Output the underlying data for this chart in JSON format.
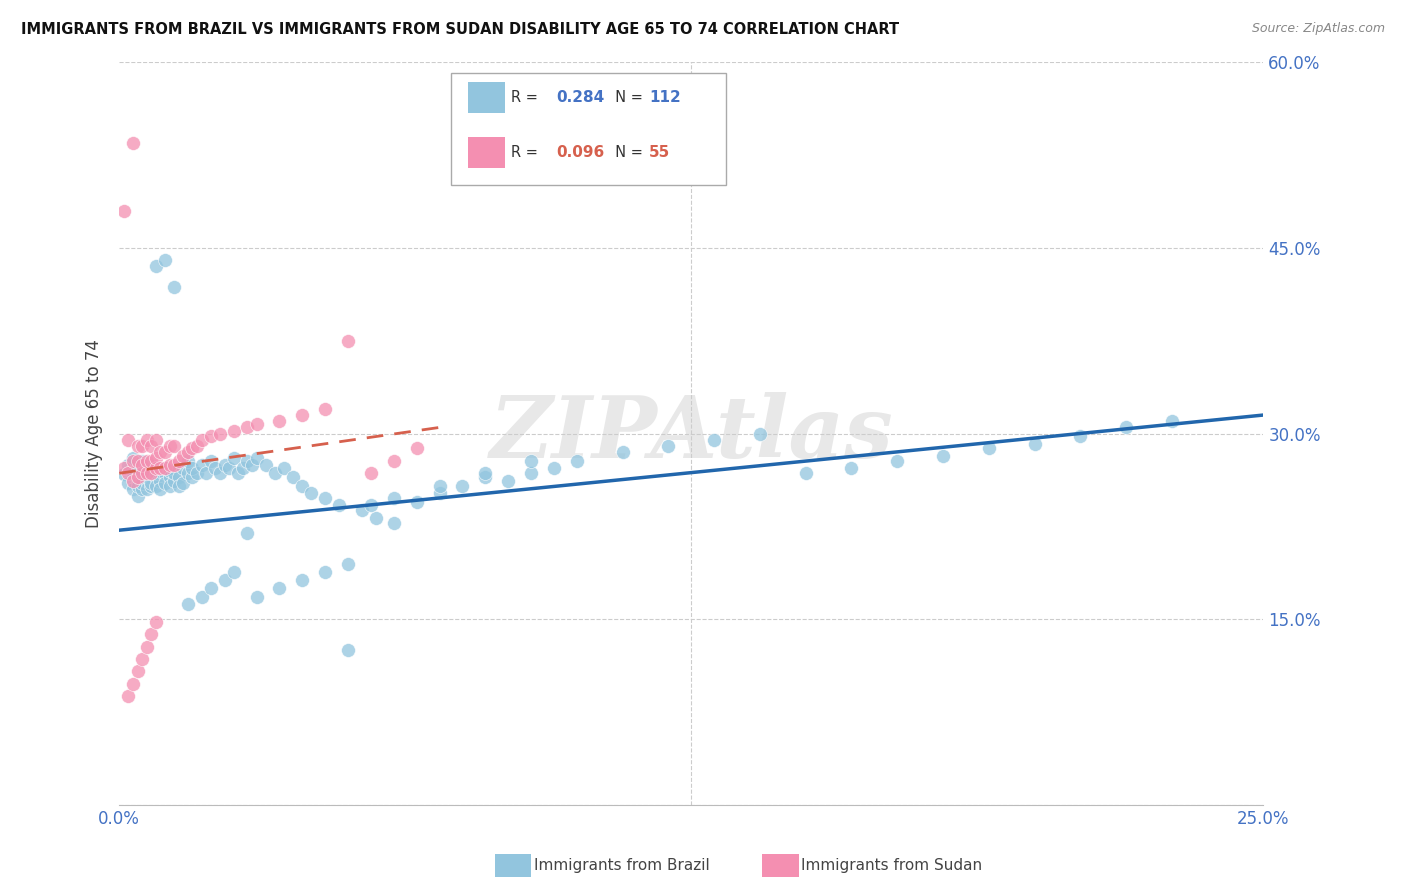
{
  "title": "IMMIGRANTS FROM BRAZIL VS IMMIGRANTS FROM SUDAN DISABILITY AGE 65 TO 74 CORRELATION CHART",
  "source": "Source: ZipAtlas.com",
  "ylabel": "Disability Age 65 to 74",
  "xlim": [
    0.0,
    0.25
  ],
  "ylim": [
    0.0,
    0.6
  ],
  "xticks": [
    0.0,
    0.05,
    0.1,
    0.15,
    0.2,
    0.25
  ],
  "xticklabels": [
    "0.0%",
    "",
    "",
    "",
    "",
    "25.0%"
  ],
  "yticks": [
    0.0,
    0.15,
    0.3,
    0.45,
    0.6
  ],
  "right_yticklabels": [
    "",
    "15.0%",
    "30.0%",
    "45.0%",
    "60.0%"
  ],
  "brazil_color": "#92c5de",
  "sudan_color": "#f48fb1",
  "brazil_line_color": "#2166ac",
  "sudan_line_color": "#d6604d",
  "brazil_R": "0.284",
  "brazil_N": "112",
  "sudan_R": "0.096",
  "sudan_N": "55",
  "watermark": "ZIPAtlas",
  "legend_label_brazil": "Immigrants from Brazil",
  "legend_label_sudan": "Immigrants from Sudan",
  "brazil_trendline_x": [
    0.0,
    0.25
  ],
  "brazil_trendline_y": [
    0.222,
    0.315
  ],
  "sudan_trendline_x": [
    0.0,
    0.07
  ],
  "sudan_trendline_y": [
    0.268,
    0.305
  ],
  "brazil_scatter_x": [
    0.001,
    0.002,
    0.002,
    0.003,
    0.003,
    0.003,
    0.004,
    0.004,
    0.004,
    0.004,
    0.005,
    0.005,
    0.005,
    0.005,
    0.005,
    0.006,
    0.006,
    0.006,
    0.006,
    0.007,
    0.007,
    0.007,
    0.007,
    0.008,
    0.008,
    0.008,
    0.008,
    0.009,
    0.009,
    0.009,
    0.01,
    0.01,
    0.01,
    0.011,
    0.011,
    0.011,
    0.012,
    0.012,
    0.013,
    0.013,
    0.014,
    0.014,
    0.015,
    0.015,
    0.016,
    0.016,
    0.017,
    0.018,
    0.019,
    0.02,
    0.021,
    0.022,
    0.023,
    0.024,
    0.025,
    0.026,
    0.027,
    0.028,
    0.029,
    0.03,
    0.032,
    0.034,
    0.036,
    0.038,
    0.04,
    0.042,
    0.045,
    0.048,
    0.05,
    0.053,
    0.056,
    0.06,
    0.065,
    0.07,
    0.075,
    0.08,
    0.085,
    0.09,
    0.095,
    0.1,
    0.11,
    0.12,
    0.13,
    0.14,
    0.15,
    0.16,
    0.17,
    0.18,
    0.19,
    0.2,
    0.21,
    0.22,
    0.23,
    0.008,
    0.01,
    0.012,
    0.015,
    0.018,
    0.02,
    0.023,
    0.025,
    0.028,
    0.03,
    0.035,
    0.04,
    0.045,
    0.05,
    0.055,
    0.06,
    0.07,
    0.08,
    0.09
  ],
  "brazil_scatter_y": [
    0.267,
    0.26,
    0.275,
    0.255,
    0.268,
    0.28,
    0.25,
    0.262,
    0.271,
    0.258,
    0.265,
    0.255,
    0.27,
    0.26,
    0.278,
    0.262,
    0.255,
    0.27,
    0.265,
    0.258,
    0.268,
    0.275,
    0.26,
    0.265,
    0.272,
    0.258,
    0.268,
    0.262,
    0.27,
    0.255,
    0.268,
    0.26,
    0.272,
    0.265,
    0.258,
    0.27,
    0.262,
    0.268,
    0.265,
    0.258,
    0.272,
    0.26,
    0.268,
    0.278,
    0.265,
    0.272,
    0.268,
    0.275,
    0.268,
    0.278,
    0.272,
    0.268,
    0.275,
    0.272,
    0.28,
    0.268,
    0.272,
    0.278,
    0.275,
    0.28,
    0.275,
    0.268,
    0.272,
    0.265,
    0.258,
    0.252,
    0.248,
    0.242,
    0.125,
    0.238,
    0.232,
    0.228,
    0.245,
    0.252,
    0.258,
    0.265,
    0.262,
    0.268,
    0.272,
    0.278,
    0.285,
    0.29,
    0.295,
    0.3,
    0.268,
    0.272,
    0.278,
    0.282,
    0.288,
    0.292,
    0.298,
    0.305,
    0.31,
    0.435,
    0.44,
    0.418,
    0.162,
    0.168,
    0.175,
    0.182,
    0.188,
    0.22,
    0.168,
    0.175,
    0.182,
    0.188,
    0.195,
    0.242,
    0.248,
    0.258,
    0.268,
    0.278
  ],
  "sudan_scatter_x": [
    0.001,
    0.001,
    0.002,
    0.002,
    0.003,
    0.003,
    0.003,
    0.004,
    0.004,
    0.004,
    0.005,
    0.005,
    0.005,
    0.006,
    0.006,
    0.006,
    0.007,
    0.007,
    0.007,
    0.008,
    0.008,
    0.008,
    0.009,
    0.009,
    0.01,
    0.01,
    0.011,
    0.011,
    0.012,
    0.012,
    0.013,
    0.014,
    0.015,
    0.016,
    0.017,
    0.018,
    0.02,
    0.022,
    0.025,
    0.028,
    0.03,
    0.035,
    0.04,
    0.045,
    0.05,
    0.055,
    0.06,
    0.065,
    0.002,
    0.003,
    0.004,
    0.005,
    0.006,
    0.007,
    0.008
  ],
  "sudan_scatter_y": [
    0.272,
    0.48,
    0.268,
    0.295,
    0.262,
    0.278,
    0.535,
    0.265,
    0.278,
    0.29,
    0.268,
    0.275,
    0.29,
    0.268,
    0.278,
    0.295,
    0.268,
    0.278,
    0.29,
    0.272,
    0.28,
    0.295,
    0.272,
    0.285,
    0.272,
    0.285,
    0.275,
    0.29,
    0.275,
    0.29,
    0.278,
    0.282,
    0.285,
    0.288,
    0.29,
    0.295,
    0.298,
    0.3,
    0.302,
    0.305,
    0.308,
    0.31,
    0.315,
    0.32,
    0.375,
    0.268,
    0.278,
    0.288,
    0.088,
    0.098,
    0.108,
    0.118,
    0.128,
    0.138,
    0.148
  ]
}
